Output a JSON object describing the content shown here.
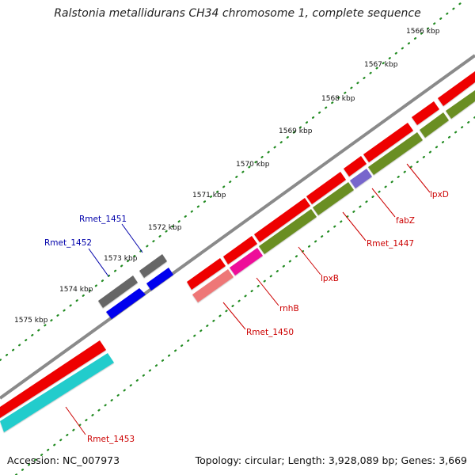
{
  "title": "Ralstonia metallidurans CH34 chromosome 1, complete sequence",
  "footer": {
    "accession": "Accession: NC_007973",
    "summary": "Topology: circular; Length: 3,928,089 bp; Genes: 3,669"
  },
  "scale": {
    "ticks": [
      "1566 kbp",
      "1567 kbp",
      "1568 kbp",
      "1569 kbp",
      "1570 kbp",
      "1571 kbp",
      "1572 kbp",
      "1573 kbp",
      "1574 kbp",
      "1575 kbp"
    ]
  },
  "genes": [
    {
      "label": "lpxD",
      "color": "#cc0000"
    },
    {
      "label": "fabZ",
      "color": "#cc0000"
    },
    {
      "label": "Rmet_1447",
      "color": "#cc0000"
    },
    {
      "label": "lpxB",
      "color": "#cc0000"
    },
    {
      "label": "rnhB",
      "color": "#cc0000"
    },
    {
      "label": "Rmet_1450",
      "color": "#cc0000"
    },
    {
      "label": "Rmet_1451",
      "color": "#0000aa"
    },
    {
      "label": "Rmet_1452",
      "color": "#0000aa"
    },
    {
      "label": "Rmet_1453",
      "color": "#cc0000"
    }
  ],
  "colors": {
    "backbone": "#8a8a8a",
    "cds_forward": "#ee0000",
    "cds_reverse_green": "#6b8e23",
    "rna_gray": "#666666",
    "rna_blue": "#0000ee",
    "cyan": "#22cccc",
    "magenta": "#ee1199",
    "salmon": "#ee7777",
    "lavender": "#7766cc",
    "tick_green": "#228b22"
  }
}
